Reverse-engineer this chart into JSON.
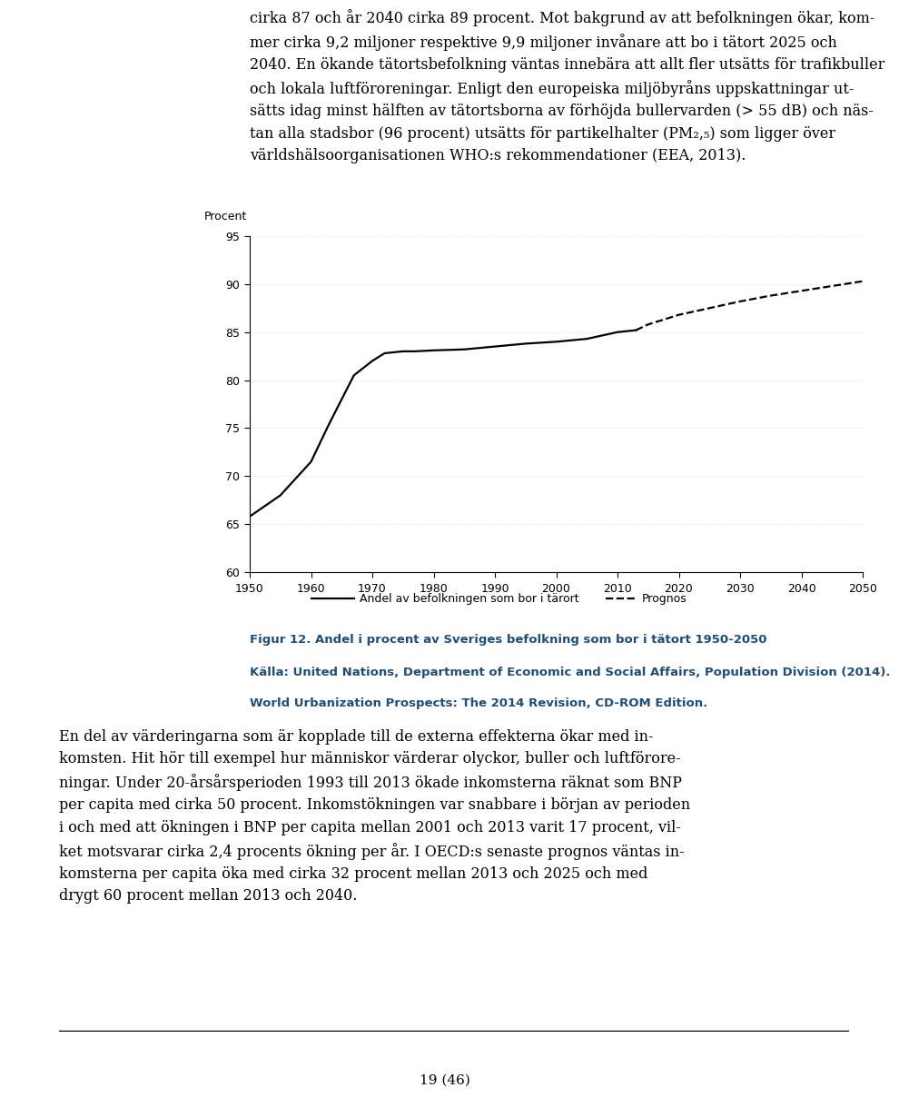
{
  "solid_x": [
    1950,
    1955,
    1960,
    1963,
    1965,
    1967,
    1970,
    1972,
    1975,
    1977,
    1980,
    1985,
    1990,
    1995,
    2000,
    2005,
    2010,
    2013
  ],
  "solid_y": [
    65.8,
    68.0,
    71.5,
    75.5,
    78.0,
    80.5,
    82.0,
    82.8,
    83.0,
    83.0,
    83.1,
    83.2,
    83.5,
    83.8,
    84.0,
    84.3,
    85.0,
    85.2
  ],
  "dashed_x": [
    2013,
    2015,
    2020,
    2025,
    2030,
    2035,
    2040,
    2045,
    2050
  ],
  "dashed_y": [
    85.2,
    85.8,
    86.8,
    87.5,
    88.2,
    88.8,
    89.3,
    89.8,
    90.3
  ],
  "ylim": [
    60,
    95
  ],
  "xlim": [
    1950,
    2050
  ],
  "yticks": [
    60,
    65,
    70,
    75,
    80,
    85,
    90,
    95
  ],
  "xticks": [
    1950,
    1960,
    1970,
    1980,
    1990,
    2000,
    2010,
    2020,
    2030,
    2040,
    2050
  ],
  "ylabel": "Procent",
  "legend1": "Andel av befolkningen som bor i tärort",
  "legend2": "Prognos",
  "line_color": "#000000",
  "figcaption_title": "Figur 12. Andel i procent av Sveriges befolkning som bor i tätort 1950-2050",
  "figcaption_source": "Källa: United Nations, Department of Economic and Social Affairs, Population Division (2014).",
  "figcaption_source2": "World Urbanization Prospects: The 2014 Revision, CD-ROM Edition.",
  "caption_color": "#1f4e79",
  "page_number": "19 (46)"
}
